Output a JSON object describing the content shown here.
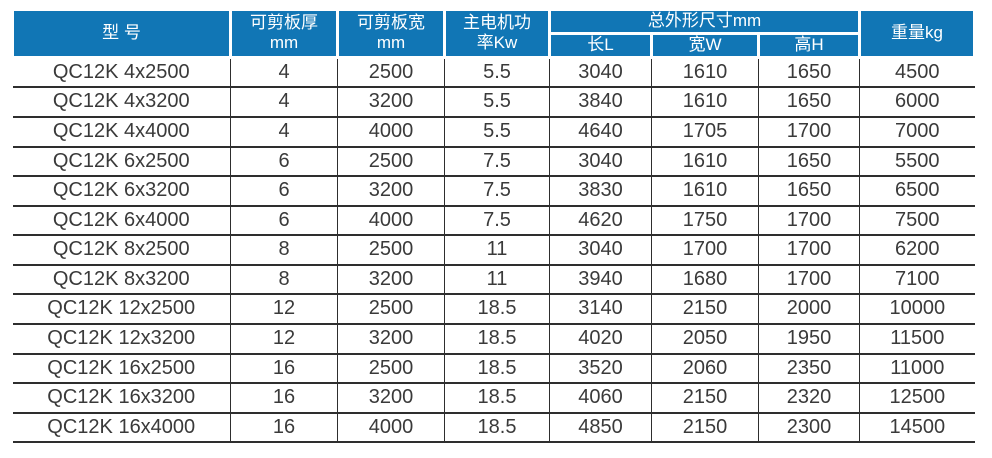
{
  "colors": {
    "header_bg": "#1176b5",
    "header_text": "#ffffff",
    "body_text": "#3a3a3a",
    "grid_line": "#2e2e2e"
  },
  "table": {
    "header": {
      "model": "型 号",
      "thickness": "可剪板厚\nmm",
      "width": "可剪板宽\nmm",
      "power": "主电机功\n率Kw",
      "dimensions_group": "总外形尺寸mm",
      "length": "长L",
      "width_w": "宽W",
      "height": "高H",
      "weight": "重量kg"
    },
    "rows": [
      [
        "QC12K 4x2500",
        "4",
        "2500",
        "5.5",
        "3040",
        "1610",
        "1650",
        "4500"
      ],
      [
        "QC12K 4x3200",
        "4",
        "3200",
        "5.5",
        "3840",
        "1610",
        "1650",
        "6000"
      ],
      [
        "QC12K 4x4000",
        "4",
        "4000",
        "5.5",
        "4640",
        "1705",
        "1700",
        "7000"
      ],
      [
        "QC12K 6x2500",
        "6",
        "2500",
        "7.5",
        "3040",
        "1610",
        "1650",
        "5500"
      ],
      [
        "QC12K 6x3200",
        "6",
        "3200",
        "7.5",
        "3830",
        "1610",
        "1650",
        "6500"
      ],
      [
        "QC12K 6x4000",
        "6",
        "4000",
        "7.5",
        "4620",
        "1750",
        "1700",
        "7500"
      ],
      [
        "QC12K 8x2500",
        "8",
        "2500",
        "11",
        "3040",
        "1700",
        "1700",
        "6200"
      ],
      [
        "QC12K 8x3200",
        "8",
        "3200",
        "11",
        "3940",
        "1680",
        "1700",
        "7100"
      ],
      [
        "QC12K 12x2500",
        "12",
        "2500",
        "18.5",
        "3140",
        "2150",
        "2000",
        "10000"
      ],
      [
        "QC12K 12x3200",
        "12",
        "3200",
        "18.5",
        "4020",
        "2050",
        "1950",
        "11500"
      ],
      [
        "QC12K 16x2500",
        "16",
        "2500",
        "18.5",
        "3520",
        "2060",
        "2350",
        "11000"
      ],
      [
        "QC12K 16x3200",
        "16",
        "3200",
        "18.5",
        "4060",
        "2150",
        "2320",
        "12500"
      ],
      [
        "QC12K 16x4000",
        "16",
        "4000",
        "18.5",
        "4850",
        "2150",
        "2300",
        "14500"
      ]
    ],
    "column_names": [
      "model",
      "thickness",
      "width",
      "power",
      "length",
      "width-w",
      "height",
      "weight"
    ]
  }
}
